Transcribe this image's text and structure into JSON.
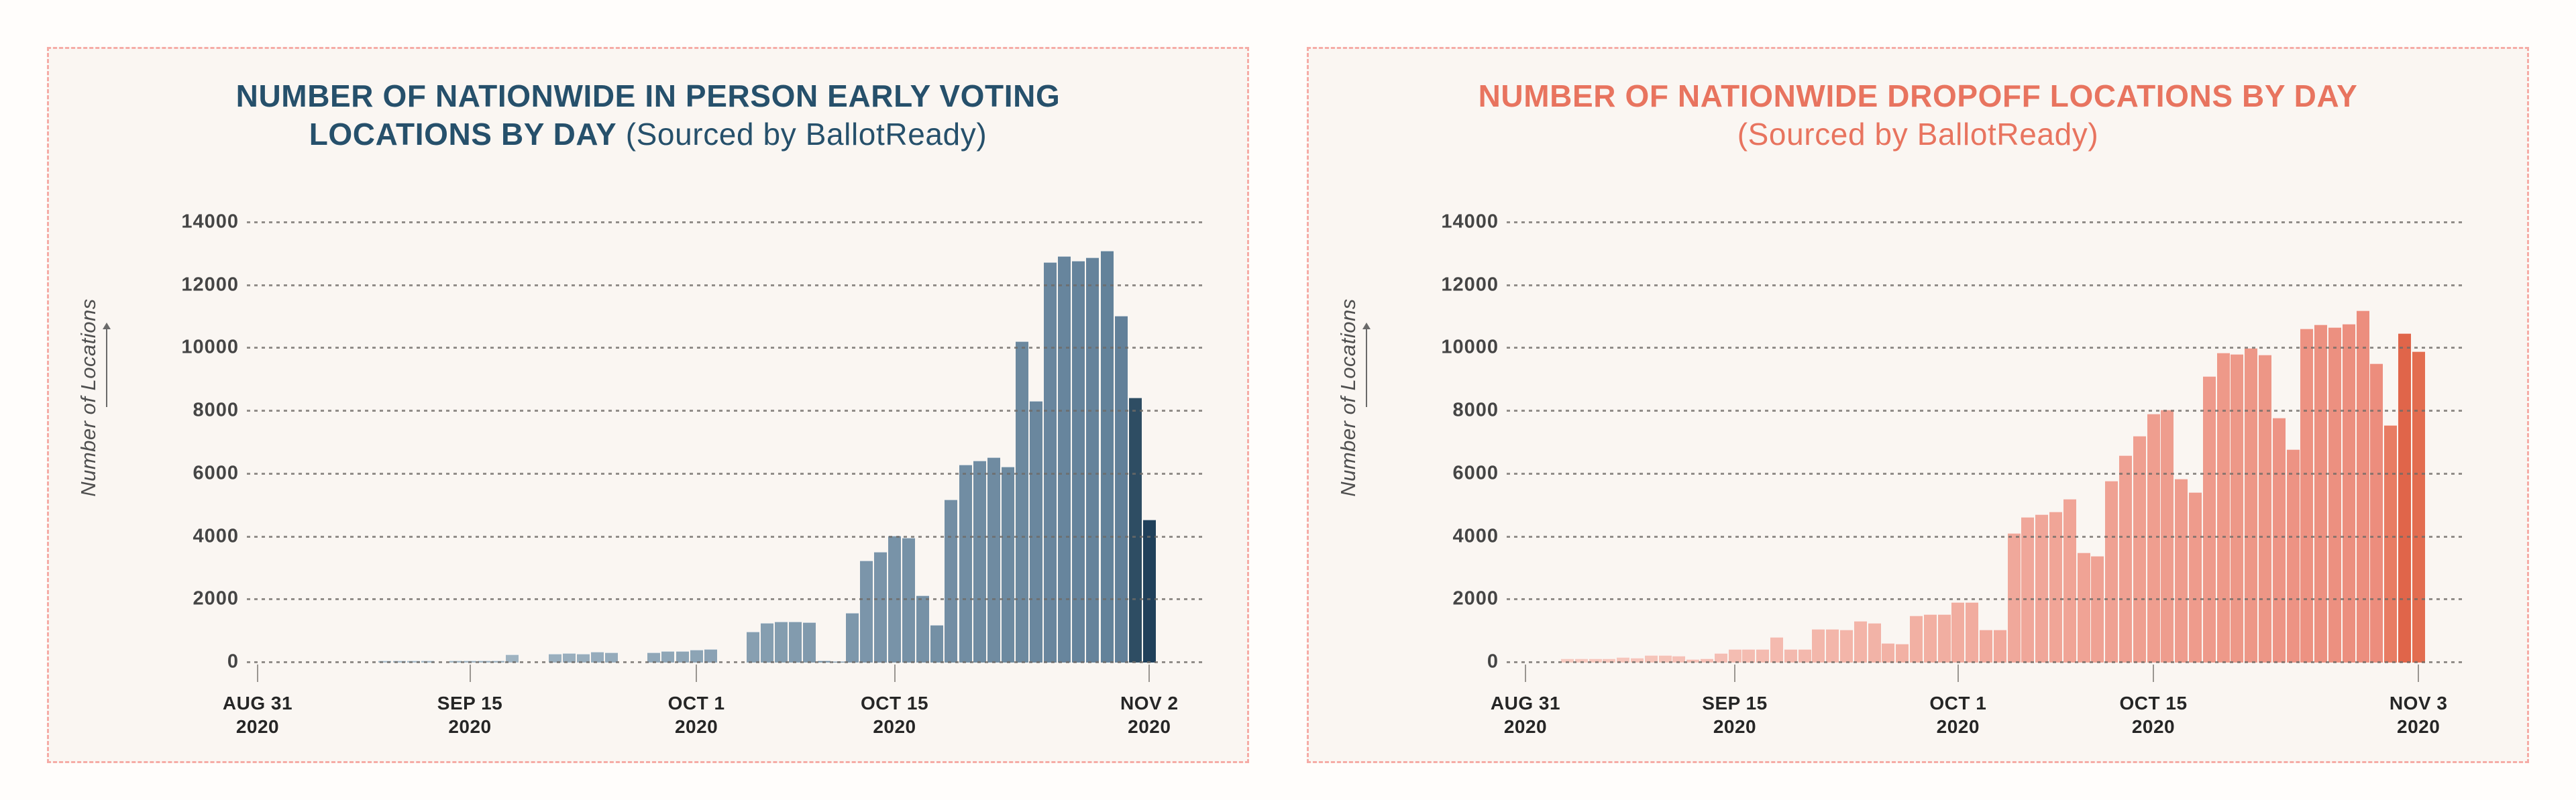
{
  "page": {
    "background": "#fffdfb",
    "card_background": "#faf6f2",
    "card_border_color": "#f6aca6"
  },
  "charts": [
    {
      "name": "in-person-early-voting-by-day",
      "title": {
        "line1": "NUMBER OF NATIONWIDE IN PERSON EARLY VOTING",
        "line2_bold": "LOCATIONS BY DAY",
        "line2_regular": " (Sourced by BallotReady)",
        "color": "#26506b"
      },
      "y_axis": {
        "label": "Number of Locations",
        "ticks": [
          0,
          2000,
          4000,
          6000,
          8000,
          10000,
          12000,
          14000
        ],
        "max": 14000
      },
      "x_axis": {
        "ticks": [
          {
            "line1": "AUG 31",
            "line2": "2020",
            "day": 0
          },
          {
            "line1": "SEP 15",
            "line2": "2020",
            "day": 15
          },
          {
            "line1": "OCT 1",
            "line2": "2020",
            "day": 31
          },
          {
            "line1": "OCT 15",
            "line2": "2020",
            "day": 45
          },
          {
            "line1": "NOV 2",
            "line2": "2020",
            "day": 63
          }
        ]
      },
      "bars": {
        "color_start": "#b8c8d2",
        "color_end": "#5f7e97",
        "overrides": {
          "62": "#2e4d63",
          "63": "#20405a"
        }
      },
      "chart_data": {
        "type": "bar",
        "title": "NUMBER OF NATIONWIDE IN PERSON EARLY VOTING LOCATIONS BY DAY (Sourced by BallotReady)",
        "ylabel": "Number of Locations",
        "ylim": [
          0,
          14000
        ],
        "grid": "dashed-horizontal",
        "legend": "none",
        "x_start": "2020-08-31",
        "x_end": "2020-11-02",
        "dates": [
          "AUG 31",
          "SEP 1",
          "SEP 2",
          "SEP 3",
          "SEP 4",
          "SEP 5",
          "SEP 6",
          "SEP 7",
          "SEP 8",
          "SEP 9",
          "SEP 10",
          "SEP 11",
          "SEP 12",
          "SEP 13",
          "SEP 14",
          "SEP 15",
          "SEP 16",
          "SEP 17",
          "SEP 18",
          "SEP 19",
          "SEP 20",
          "SEP 21",
          "SEP 22",
          "SEP 23",
          "SEP 24",
          "SEP 25",
          "SEP 26",
          "SEP 27",
          "SEP 28",
          "SEP 29",
          "SEP 30",
          "OCT 1",
          "OCT 2",
          "OCT 3",
          "OCT 4",
          "OCT 5",
          "OCT 6",
          "OCT 7",
          "OCT 8",
          "OCT 9",
          "OCT 10",
          "OCT 11",
          "OCT 12",
          "OCT 13",
          "OCT 14",
          "OCT 15",
          "OCT 16",
          "OCT 17",
          "OCT 18",
          "OCT 19",
          "OCT 20",
          "OCT 21",
          "OCT 22",
          "OCT 23",
          "OCT 24",
          "OCT 25",
          "OCT 26",
          "OCT 27",
          "OCT 28",
          "OCT 29",
          "OCT 30",
          "OCT 31",
          "NOV 1",
          "NOV 2"
        ],
        "values": [
          0,
          0,
          0,
          0,
          0,
          0,
          0,
          0,
          0,
          35,
          40,
          40,
          35,
          0,
          35,
          35,
          35,
          35,
          230,
          0,
          0,
          260,
          270,
          260,
          310,
          290,
          0,
          0,
          305,
          345,
          345,
          385,
          415,
          0,
          0,
          970,
          1230,
          1270,
          1290,
          1250,
          35,
          20,
          1560,
          3220,
          3510,
          4010,
          3950,
          2110,
          1180,
          5170,
          6270,
          6400,
          6500,
          6200,
          10210,
          8300,
          12720,
          12920,
          12760,
          12860,
          13090,
          11010,
          8400,
          4530
        ]
      }
    },
    {
      "name": "dropoff-locations-by-day",
      "title": {
        "line1": "NUMBER OF NATIONWIDE DROPOFF LOCATIONS BY DAY",
        "line2_bold": "",
        "line2_regular": "(Sourced by BallotReady)",
        "color": "#e8745f"
      },
      "y_axis": {
        "label": "Number of Locations",
        "ticks": [
          0,
          2000,
          4000,
          6000,
          8000,
          10000,
          12000,
          14000
        ],
        "max": 14000
      },
      "x_axis": {
        "ticks": [
          {
            "line1": "AUG 31",
            "line2": "2020",
            "day": 0
          },
          {
            "line1": "SEP 15",
            "line2": "2020",
            "day": 15
          },
          {
            "line1": "OCT 1",
            "line2": "2020",
            "day": 31
          },
          {
            "line1": "OCT 15",
            "line2": "2020",
            "day": 45
          },
          {
            "line1": "NOV 3",
            "line2": "2020",
            "day": 64
          }
        ]
      },
      "bars": {
        "color_start": "#f7cdc4",
        "color_end": "#eb8a79",
        "overrides": {
          "62": "#e87c63",
          "63": "#e0654a",
          "64": "#e36d50"
        }
      },
      "chart_data": {
        "type": "bar",
        "title": "NUMBER OF NATIONWIDE DROPOFF LOCATIONS BY DAY (Sourced by BallotReady)",
        "ylabel": "Number of Locations",
        "ylim": [
          0,
          14000
        ],
        "grid": "dashed-horizontal",
        "legend": "none",
        "x_start": "2020-08-31",
        "x_end": "2020-11-03",
        "dates": [
          "AUG 31",
          "SEP 1",
          "SEP 2",
          "SEP 3",
          "SEP 4",
          "SEP 5",
          "SEP 6",
          "SEP 7",
          "SEP 8",
          "SEP 9",
          "SEP 10",
          "SEP 11",
          "SEP 12",
          "SEP 13",
          "SEP 14",
          "SEP 15",
          "SEP 16",
          "SEP 17",
          "SEP 18",
          "SEP 19",
          "SEP 20",
          "SEP 21",
          "SEP 22",
          "SEP 23",
          "SEP 24",
          "SEP 25",
          "SEP 26",
          "SEP 27",
          "SEP 28",
          "SEP 29",
          "SEP 30",
          "OCT 1",
          "OCT 2",
          "OCT 3",
          "OCT 4",
          "OCT 5",
          "OCT 6",
          "OCT 7",
          "OCT 8",
          "OCT 9",
          "OCT 10",
          "OCT 11",
          "OCT 12",
          "OCT 13",
          "OCT 14",
          "OCT 15",
          "OCT 16",
          "OCT 17",
          "OCT 18",
          "OCT 19",
          "OCT 20",
          "OCT 21",
          "OCT 22",
          "OCT 23",
          "OCT 24",
          "OCT 25",
          "OCT 26",
          "OCT 27",
          "OCT 28",
          "OCT 29",
          "OCT 30",
          "OCT 31",
          "NOV 1",
          "NOV 2",
          "NOV 3"
        ],
        "values": [
          0,
          0,
          0,
          110,
          110,
          110,
          100,
          150,
          135,
          205,
          205,
          185,
          90,
          105,
          280,
          400,
          400,
          400,
          800,
          400,
          415,
          1040,
          1040,
          1020,
          1300,
          1240,
          595,
          570,
          1480,
          1510,
          1510,
          1890,
          1890,
          1020,
          1020,
          4090,
          4600,
          4690,
          4780,
          5190,
          3470,
          3365,
          5755,
          6580,
          7195,
          7890,
          8030,
          5820,
          5405,
          9090,
          9830,
          9800,
          9990,
          9765,
          7765,
          6770,
          10610,
          10730,
          10655,
          10750,
          11185,
          9500,
          7525,
          10465,
          9880
        ]
      }
    }
  ]
}
